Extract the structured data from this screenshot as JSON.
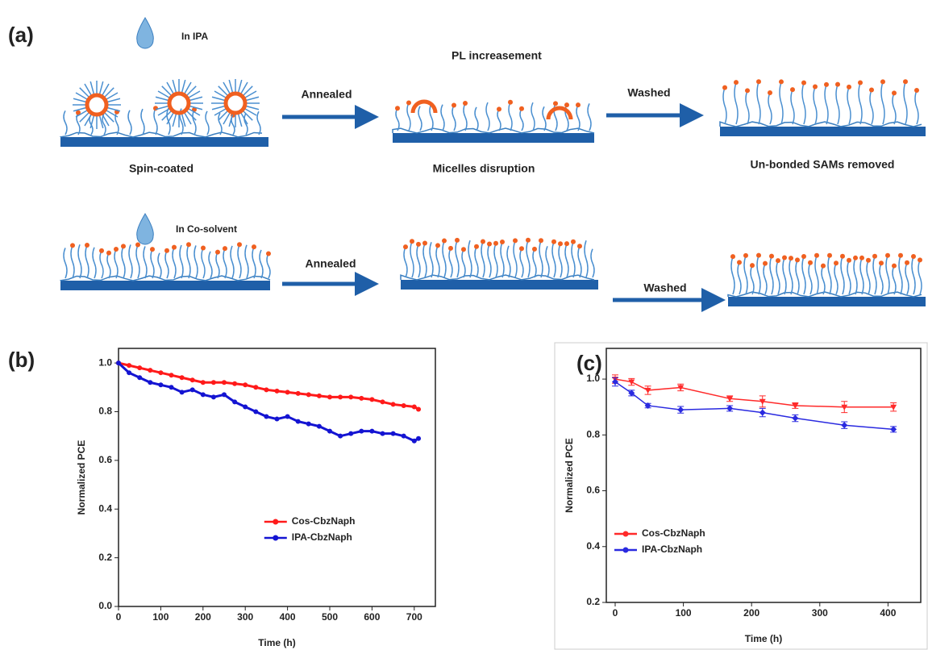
{
  "diagram": {
    "panel": "(a)",
    "drop_1": "In IPA",
    "top_note": "PL increasement",
    "arrow_1": "Annealed",
    "arrow_2": "Washed",
    "step_1": "Spin-coated",
    "step_2": "Micelles disruption",
    "step_3": "Un-bonded SAMs removed",
    "drop_2": "In Co-solvent",
    "arrow_3": "Annealed",
    "arrow_4": "Washed"
  },
  "chart_data": [
    {
      "type": "line",
      "panel": "(b)",
      "x_label": "Time (h)",
      "y_label": "Normalized PCE",
      "x": [
        0,
        25,
        50,
        75,
        100,
        125,
        150,
        175,
        200,
        225,
        250,
        275,
        300,
        325,
        350,
        375,
        400,
        425,
        450,
        475,
        500,
        525,
        550,
        575,
        600,
        625,
        650,
        675,
        700,
        710
      ],
      "series": [
        {
          "name": "Cos-CbzNaph",
          "color": "#ff1a1a",
          "values": [
            1.0,
            0.99,
            0.98,
            0.97,
            0.96,
            0.95,
            0.94,
            0.93,
            0.92,
            0.92,
            0.92,
            0.915,
            0.91,
            0.9,
            0.89,
            0.885,
            0.88,
            0.875,
            0.87,
            0.865,
            0.86,
            0.86,
            0.86,
            0.855,
            0.85,
            0.84,
            0.83,
            0.825,
            0.82,
            0.81
          ]
        },
        {
          "name": "IPA-CbzNaph",
          "color": "#1414d2",
          "values": [
            1.0,
            0.96,
            0.94,
            0.92,
            0.91,
            0.9,
            0.88,
            0.89,
            0.87,
            0.86,
            0.87,
            0.84,
            0.82,
            0.8,
            0.78,
            0.77,
            0.78,
            0.76,
            0.75,
            0.74,
            0.72,
            0.7,
            0.71,
            0.72,
            0.72,
            0.71,
            0.71,
            0.7,
            0.68,
            0.69
          ]
        }
      ],
      "xlim": [
        0,
        750
      ],
      "xticks": [
        0,
        100,
        200,
        300,
        400,
        500,
        600,
        700
      ],
      "ylim": [
        0,
        1.06
      ],
      "yticks": [
        {
          "value": 0,
          "label": "0.0"
        },
        0.2,
        0.4,
        0.6,
        0.8,
        {
          "value": 1,
          "label": "1.0"
        }
      ],
      "legend": "lower right"
    },
    {
      "type": "errorline",
      "panel": "(c)",
      "x_label": "Time (h)",
      "y_label": "Normalized PCE",
      "x": [
        0,
        24,
        48,
        96,
        168,
        216,
        264,
        336,
        408
      ],
      "series": [
        {
          "name": "Cos-CbzNaph",
          "color": "#ff2a2a",
          "values": [
            1.0,
            0.99,
            0.96,
            0.97,
            0.93,
            0.92,
            0.905,
            0.9,
            0.9
          ],
          "errors": [
            0.015,
            0.012,
            0.015,
            0.012,
            0.01,
            0.02,
            0.01,
            0.02,
            0.015
          ]
        },
        {
          "name": "IPA-CbzNaph",
          "color": "#2a2ae0",
          "values": [
            0.99,
            0.95,
            0.905,
            0.89,
            0.895,
            0.88,
            0.86,
            0.835,
            0.82
          ],
          "errors": [
            0.015,
            0.01,
            0.008,
            0.012,
            0.01,
            0.015,
            0.012,
            0.012,
            0.01
          ]
        }
      ],
      "xlim": [
        -13,
        448
      ],
      "xticks": [
        0,
        100,
        200,
        300,
        400
      ],
      "ylim": [
        0.2,
        1.11
      ],
      "yticks": [
        0.2,
        0.4,
        0.6,
        0.8,
        {
          "value": 1,
          "label": "1.0"
        }
      ],
      "legend": "lower left"
    }
  ]
}
